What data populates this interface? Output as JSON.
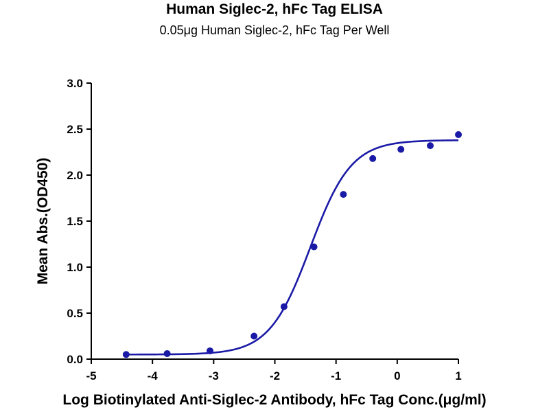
{
  "chart_data": {
    "type": "scatter",
    "title": "Human Siglec-2, hFc Tag ELISA",
    "subtitle": "0.05μg Human Siglec-2, hFc Tag Per Well",
    "xlabel": "Log Biotinylated Anti-Siglec-2 Antibody, hFc Tag Conc.(μg/ml)",
    "ylabel": "Mean Abs.(OD450)",
    "xlim": [
      -5,
      1
    ],
    "ylim": [
      0,
      3.0
    ],
    "xticks": [
      "-5",
      "-4",
      "-3",
      "-2",
      "-1",
      "0",
      "1"
    ],
    "yticks": [
      "0.0",
      "0.5",
      "1.0",
      "1.5",
      "2.0",
      "2.5",
      "3.0"
    ],
    "grid": false,
    "colors": {
      "series": "#1a1aa6",
      "axis": "#000000"
    },
    "series": [
      {
        "points": [
          {
            "x": -4.43,
            "y": 0.05
          },
          {
            "x": -3.76,
            "y": 0.06
          },
          {
            "x": -3.06,
            "y": 0.09
          },
          {
            "x": -2.34,
            "y": 0.25
          },
          {
            "x": -1.85,
            "y": 0.57
          },
          {
            "x": -1.36,
            "y": 1.22
          },
          {
            "x": -0.88,
            "y": 1.79
          },
          {
            "x": -0.4,
            "y": 2.18
          },
          {
            "x": 0.06,
            "y": 2.28
          },
          {
            "x": 0.54,
            "y": 2.32
          },
          {
            "x": 1.0,
            "y": 2.44
          }
        ]
      }
    ]
  }
}
